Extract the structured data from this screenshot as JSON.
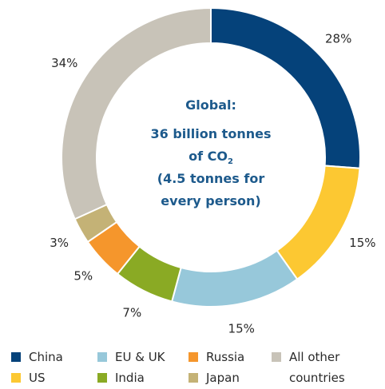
{
  "chart_data": {
    "type": "pie",
    "variant": "donut",
    "center": {
      "line1": "Global:",
      "line2": "36 billion tonnes",
      "line3_main": "of CO",
      "line3_sub": "2",
      "line4": "(4.5 tonnes for",
      "line5": "every person)"
    },
    "slices": [
      {
        "key": "china",
        "label": "China",
        "value": 28,
        "display": "28%",
        "color": "#05427a"
      },
      {
        "key": "us",
        "label": "US",
        "value": 15,
        "display": "15%",
        "color": "#fcc832"
      },
      {
        "key": "eu_uk",
        "label": "EU & UK",
        "value": 15,
        "display": "15%",
        "color": "#97c8da"
      },
      {
        "key": "india",
        "label": "India",
        "value": 7,
        "display": "7%",
        "color": "#8aaa24"
      },
      {
        "key": "russia",
        "label": "Russia",
        "value": 5,
        "display": "5%",
        "color": "#f5962c"
      },
      {
        "key": "japan",
        "label": "Japan",
        "value": 3,
        "display": "3%",
        "color": "#c4b276"
      },
      {
        "key": "all_other",
        "label": "All other countries",
        "label_line1": "All other",
        "label_line2": "countries",
        "value": 34,
        "display": "34%",
        "color": "#c8c3b8"
      }
    ],
    "legend_placement": "bottom"
  }
}
